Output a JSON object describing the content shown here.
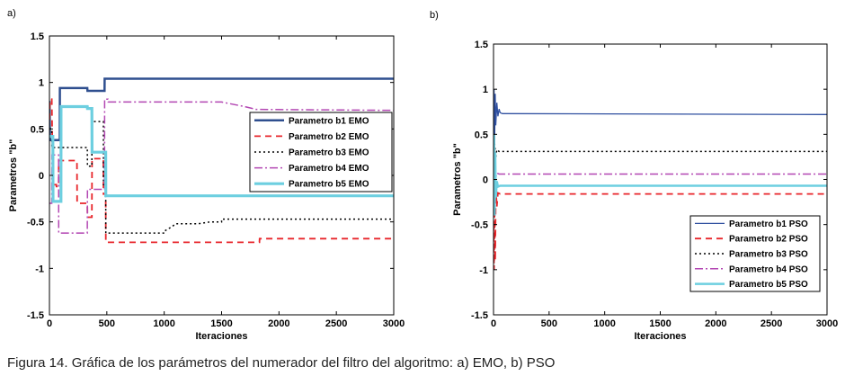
{
  "figure": {
    "caption": "Figura 14. Gráfica de los parámetros del numerador del filtro del algoritmo: a) EMO, b) PSO"
  },
  "chart_data": [
    {
      "type": "line",
      "panel_label": "a)",
      "title": "",
      "xlabel": "Iteraciones",
      "ylabel": "Parametros \"b\"",
      "xlim": [
        0,
        3000
      ],
      "ylim": [
        -1.5,
        1.5
      ],
      "xticks": [
        0,
        500,
        1000,
        1500,
        2000,
        2500,
        3000
      ],
      "yticks": [
        -1.5,
        -1,
        -0.5,
        0,
        0.5,
        1,
        1.5
      ],
      "ytick_labels": [
        "-1.5",
        "-1",
        "-0.5",
        "0",
        "0.5",
        "1",
        "1.5"
      ],
      "grid": false,
      "legend_position": "center-right",
      "series": [
        {
          "name": "Parametro b1 EMO",
          "color": "#2f4f8f",
          "width": 2.5,
          "dash": "",
          "x": [
            0,
            5,
            10,
            90,
            91,
            330,
            331,
            480,
            481,
            3000
          ],
          "y": [
            0.8,
            0.4,
            0.38,
            0.38,
            0.94,
            0.94,
            0.91,
            0.91,
            1.04,
            1.04
          ]
        },
        {
          "name": "Parametro b2 EMO",
          "color": "#e8262b",
          "width": 1.8,
          "dash": "7,5",
          "x": [
            0,
            5,
            20,
            30,
            60,
            61,
            80,
            81,
            240,
            241,
            330,
            331,
            370,
            371,
            470,
            471,
            490,
            491,
            1830,
            1831,
            3000
          ],
          "y": [
            0.6,
            0.82,
            0.82,
            -0.1,
            -0.1,
            -0.12,
            -0.12,
            0.16,
            0.16,
            -0.3,
            -0.3,
            -0.45,
            -0.45,
            0.18,
            0.18,
            -0.2,
            -0.2,
            -0.72,
            -0.72,
            -0.68,
            -0.68
          ]
        },
        {
          "name": "Parametro b3 EMO",
          "color": "#000000",
          "width": 1.5,
          "dash": "2,3",
          "x": [
            0,
            20,
            21,
            330,
            331,
            370,
            371,
            470,
            471,
            490,
            491,
            1000,
            1001,
            1070,
            1100,
            1300,
            1400,
            1500,
            1501,
            3000
          ],
          "y": [
            0.5,
            0.5,
            0.3,
            0.3,
            0.1,
            0.1,
            0.58,
            0.58,
            -0.1,
            -0.1,
            -0.62,
            -0.62,
            -0.6,
            -0.55,
            -0.52,
            -0.52,
            -0.5,
            -0.5,
            -0.47,
            -0.47
          ]
        },
        {
          "name": "Parametro b4 EMO",
          "color": "#b347b3",
          "width": 1.5,
          "dash": "9,3,2,3",
          "x": [
            0,
            20,
            21,
            80,
            81,
            330,
            331,
            480,
            481,
            510,
            511,
            1500,
            1700,
            1800,
            3000
          ],
          "y": [
            -0.3,
            -0.3,
            0.22,
            0.22,
            -0.62,
            -0.62,
            -0.15,
            -0.15,
            0.82,
            0.82,
            0.79,
            0.79,
            0.74,
            0.71,
            0.7
          ]
        },
        {
          "name": "Parametro b5 EMO",
          "color": "#6dcfe0",
          "width": 3.2,
          "dash": "",
          "x": [
            0,
            30,
            31,
            100,
            101,
            330,
            331,
            370,
            371,
            490,
            491,
            3000
          ],
          "y": [
            0.42,
            0.42,
            -0.28,
            -0.28,
            0.74,
            0.74,
            0.72,
            0.72,
            0.25,
            0.25,
            -0.22,
            -0.22
          ]
        }
      ]
    },
    {
      "type": "line",
      "panel_label": "b)",
      "title": "",
      "xlabel": "Iteraciones",
      "ylabel": "Parametros \"b\"",
      "xlim": [
        0,
        3000
      ],
      "ylim": [
        -1.5,
        1.5
      ],
      "xticks": [
        0,
        500,
        1000,
        1500,
        2000,
        2500,
        3000
      ],
      "yticks": [
        -1.5,
        -1,
        -0.5,
        0,
        0.5,
        1,
        1.5
      ],
      "ytick_labels": [
        "-1.5",
        "-1",
        "-0.5",
        "0",
        "0.5",
        "1",
        "1.5"
      ],
      "grid": false,
      "legend_position": "bottom-right",
      "series": [
        {
          "name": "Parametro b1 PSO",
          "color": "#3050a0",
          "width": 1.3,
          "dash": "",
          "x": [
            0,
            5,
            10,
            15,
            20,
            30,
            40,
            50,
            60,
            80,
            3000
          ],
          "y": [
            0.3,
            1.0,
            0.4,
            0.95,
            0.6,
            0.85,
            0.7,
            0.78,
            0.74,
            0.73,
            0.72
          ]
        },
        {
          "name": "Parametro b2 PSO",
          "color": "#e8262b",
          "width": 1.8,
          "dash": "7,5",
          "x": [
            0,
            5,
            10,
            15,
            20,
            30,
            40,
            60,
            3000
          ],
          "y": [
            -0.5,
            -1.0,
            -0.2,
            -0.9,
            -0.1,
            -0.3,
            -0.15,
            -0.16,
            -0.16
          ]
        },
        {
          "name": "Parametro b3 PSO",
          "color": "#000000",
          "width": 1.5,
          "dash": "2,3",
          "x": [
            0,
            10,
            20,
            30,
            50,
            3000
          ],
          "y": [
            0.2,
            0.4,
            0.25,
            0.33,
            0.31,
            0.31
          ]
        },
        {
          "name": "Parametro b4 PSO",
          "color": "#b347b3",
          "width": 1.5,
          "dash": "9,3,2,3",
          "x": [
            0,
            10,
            20,
            30,
            50,
            3000
          ],
          "y": [
            0.1,
            0.2,
            0.02,
            0.07,
            0.06,
            0.06
          ]
        },
        {
          "name": "Parametro b5 PSO",
          "color": "#6dcfe0",
          "width": 2.5,
          "dash": "",
          "x": [
            0,
            5,
            10,
            15,
            20,
            30,
            40,
            60,
            3000
          ],
          "y": [
            0.0,
            0.5,
            -0.4,
            0.3,
            -0.2,
            -0.02,
            -0.08,
            -0.07,
            -0.07
          ]
        }
      ]
    }
  ]
}
